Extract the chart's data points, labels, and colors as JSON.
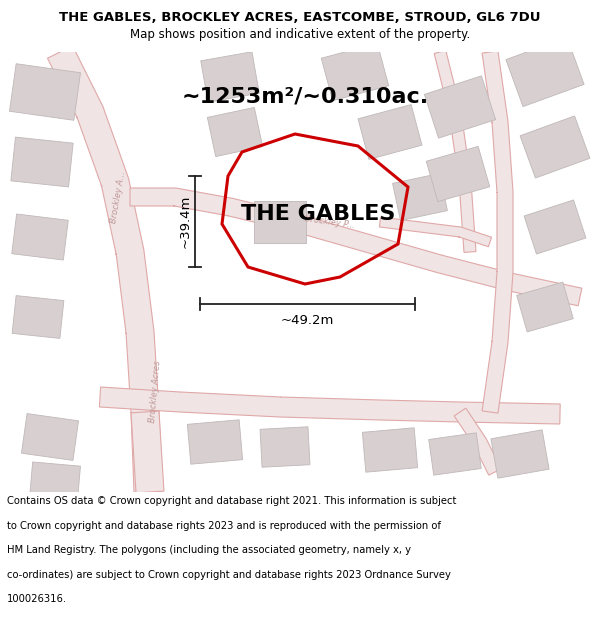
{
  "title_line1": "THE GABLES, BROCKLEY ACRES, EASTCOMBE, STROUD, GL6 7DU",
  "title_line2": "Map shows position and indicative extent of the property.",
  "area_label": "~1253m²/~0.310ac.",
  "property_label": "THE GABLES",
  "dim_horizontal": "~49.2m",
  "dim_vertical": "~39.4m",
  "footer_text": "Contains OS data © Crown copyright and database right 2021. This information is subject to Crown copyright and database rights 2023 and is reproduced with the permission of HM Land Registry. The polygons (including the associated geometry, namely x, y co-ordinates) are subject to Crown copyright and database rights 2023 Ordnance Survey 100026316.",
  "map_bg": "#f7f2f2",
  "road_color": "#e8b0b0",
  "road_fill": "#f5e8e8",
  "building_color": "#d8d0d0",
  "building_edge": "#c0b8b8",
  "highlight_color": "#cc0000",
  "dim_color": "#222222",
  "road_label_color": "#c09898",
  "title_fontsize": 9.5,
  "subtitle_fontsize": 8.5,
  "label_fontsize": 16,
  "area_fontsize": 16,
  "dim_fontsize": 9.5,
  "footer_fontsize": 7.2,
  "road_lw": 1.0,
  "property_lw": 2.2
}
